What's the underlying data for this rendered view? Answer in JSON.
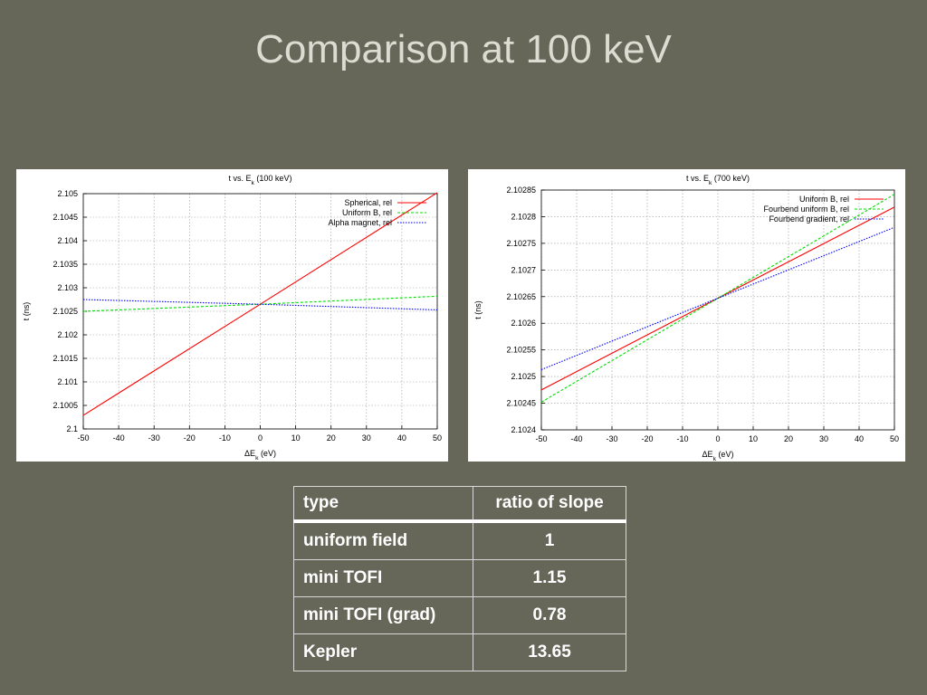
{
  "slide": {
    "title": "Comparison at 100 keV"
  },
  "chart_data": [
    {
      "type": "line",
      "title": "t vs. E_k (100 keV)",
      "title_main": "t vs. E",
      "title_sub": "k",
      "title_tail": " (100 keV)",
      "xlabel": "ΔE_k (eV)",
      "xlabel_main": "ΔE",
      "xlabel_sub": "k",
      "xlabel_tail": " (eV)",
      "ylabel": "t (ns)",
      "xlim": [
        -50,
        50
      ],
      "ylim": [
        2.1,
        2.105
      ],
      "xticks": [
        -50,
        -40,
        -30,
        -20,
        -10,
        0,
        10,
        20,
        30,
        40,
        50
      ],
      "yticks": [
        "2.1",
        "2.1005",
        "2.101",
        "2.1015",
        "2.102",
        "2.1025",
        "2.103",
        "2.1035",
        "2.104",
        "2.1045",
        "2.105"
      ],
      "grid": true,
      "legend_position": "top-right",
      "series": [
        {
          "name": "Spherical, rel",
          "color": "#ff0000",
          "dash": "solid",
          "x": [
            -50,
            0,
            50
          ],
          "y": [
            2.10029,
            2.10265,
            2.10502
          ]
        },
        {
          "name": "Uniform B, rel",
          "color": "#00dd00",
          "dash": "dashed",
          "x": [
            -50,
            0,
            50
          ],
          "y": [
            2.1025,
            2.10265,
            2.10282
          ]
        },
        {
          "name": "Alpha magnet, rel",
          "color": "#0000ff",
          "dash": "dotted",
          "x": [
            -50,
            0,
            50
          ],
          "y": [
            2.10275,
            2.10265,
            2.10253
          ]
        }
      ]
    },
    {
      "type": "line",
      "title": "t vs. E_k (700 keV)",
      "title_main": "t vs. E",
      "title_sub": "k",
      "title_tail": " (700 keV)",
      "xlabel": "ΔE_k (eV)",
      "xlabel_main": "ΔE",
      "xlabel_sub": "k",
      "xlabel_tail": " (eV)",
      "ylabel": "t (ns)",
      "xlim": [
        -50,
        50
      ],
      "ylim": [
        2.1024,
        2.10285
      ],
      "xticks": [
        -50,
        -40,
        -30,
        -20,
        -10,
        0,
        10,
        20,
        30,
        40,
        50
      ],
      "yticks": [
        "2.1024",
        "2.10245",
        "2.1025",
        "2.10255",
        "2.1026",
        "2.10265",
        "2.1027",
        "2.10275",
        "2.1028",
        "2.10285"
      ],
      "grid": true,
      "legend_position": "top-right",
      "series": [
        {
          "name": "Uniform B, rel",
          "color": "#ff0000",
          "dash": "solid",
          "x": [
            -50,
            0,
            50
          ],
          "y": [
            2.102475,
            2.102647,
            2.102818
          ]
        },
        {
          "name": "Fourbend uniform B, rel",
          "color": "#00dd00",
          "dash": "dashed",
          "x": [
            -50,
            0,
            50
          ],
          "y": [
            2.102452,
            2.102647,
            2.102842
          ]
        },
        {
          "name": "Fourbend gradient, rel",
          "color": "#0000ff",
          "dash": "dotted",
          "x": [
            -50,
            0,
            50
          ],
          "y": [
            2.102513,
            2.102647,
            2.10278
          ]
        }
      ]
    }
  ],
  "table": {
    "headers": [
      "type",
      "ratio of slope"
    ],
    "rows": [
      [
        "uniform field",
        "1"
      ],
      [
        "mini TOFI",
        "1.15"
      ],
      [
        "mini TOFI (grad)",
        "0.78"
      ],
      [
        "Kepler",
        "13.65"
      ]
    ]
  }
}
